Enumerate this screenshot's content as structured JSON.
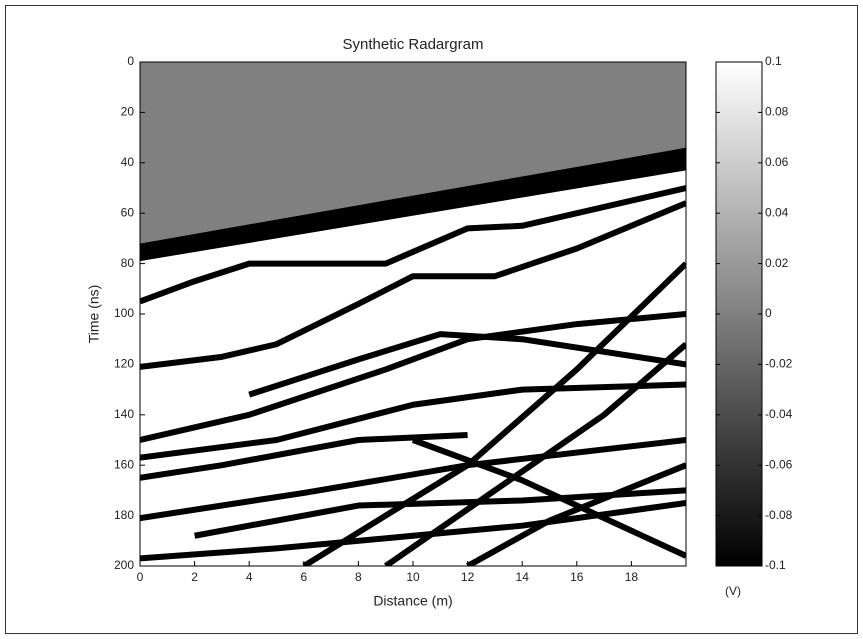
{
  "chart_data": {
    "type": "heatmap",
    "title": "Synthetic Radargram",
    "xlabel": "Distance (m)",
    "ylabel": "Time (ns)",
    "xlim": [
      0,
      20
    ],
    "xticks": [
      0,
      2,
      4,
      6,
      8,
      10,
      12,
      14,
      16,
      18
    ],
    "ylim": [
      0,
      200
    ],
    "yticks": [
      0,
      20,
      40,
      60,
      80,
      100,
      120,
      140,
      160,
      180,
      200
    ],
    "y_reversed": true,
    "colormap": "gray",
    "colorbar_label": "(V)",
    "clim": [
      -0.1,
      0.1
    ],
    "colorbar_ticks": [
      0.1,
      0.08,
      0.06,
      0.04,
      0.02,
      0,
      -0.02,
      -0.04,
      -0.06,
      -0.08,
      -0.1
    ]
  }
}
